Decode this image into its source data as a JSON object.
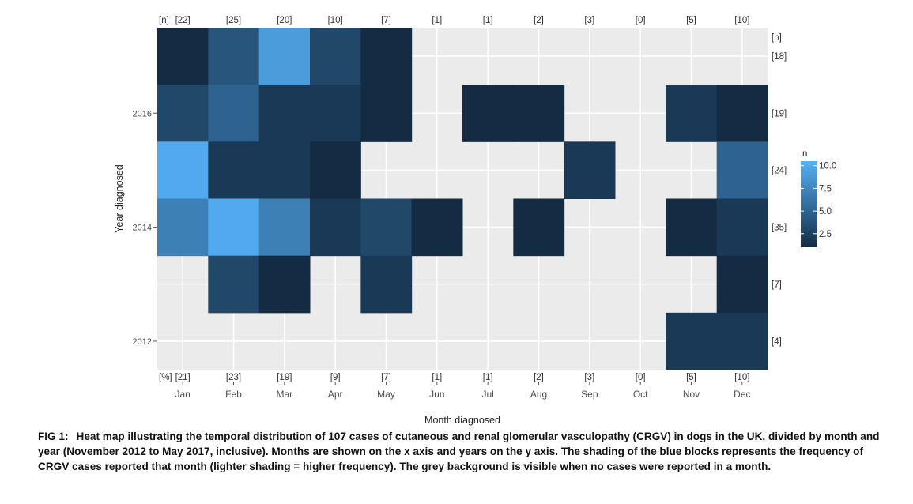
{
  "chart_data": {
    "type": "heatmap",
    "x_categories": [
      "Jan",
      "Feb",
      "Mar",
      "Apr",
      "May",
      "Jun",
      "Jul",
      "Aug",
      "Sep",
      "Oct",
      "Nov",
      "Dec"
    ],
    "y_categories": [
      "2017",
      "2016",
      "2015",
      "2014",
      "2013",
      "2012"
    ],
    "y_tick_labels": [
      "2016",
      "2014",
      "2012"
    ],
    "xlabel": "Month diagnosed",
    "ylabel": "Year diagnosed",
    "top_n_header": "[n]",
    "top_n_values": [
      "[22]",
      "[25]",
      "[20]",
      "[10]",
      "[7]",
      "[1]",
      "[1]",
      "[2]",
      "[3]",
      "[0]",
      "[5]",
      "[10]"
    ],
    "bottom_pct_header": "[%]",
    "bottom_pct_values": [
      "[21]",
      "[23]",
      "[19]",
      "[9]",
      "[7]",
      "[1]",
      "[1]",
      "[2]",
      "[3]",
      "[0]",
      "[5]",
      "[10]"
    ],
    "right_n_header": "[n]",
    "right_n_values": [
      "[18]",
      "[19]",
      "[24]",
      "[35]",
      "[7]",
      "[4]"
    ],
    "legend": {
      "title": "n",
      "min": 1,
      "max": 10.5,
      "ticks": [
        "10.0",
        "7.5",
        "5.0",
        "2.5"
      ],
      "tick_values": [
        10,
        7.5,
        5,
        2.5
      ],
      "position": "right"
    },
    "grid": true,
    "colors": {
      "panel": "#ebebeb",
      "gridline": "#ffffff",
      "low": "#132b43",
      "high": "#56b1f7"
    },
    "cells": [
      {
        "year": "2017",
        "month": "Jan",
        "n": 1
      },
      {
        "year": "2017",
        "month": "Feb",
        "n": 4
      },
      {
        "year": "2017",
        "month": "Mar",
        "n": 9
      },
      {
        "year": "2017",
        "month": "Apr",
        "n": 3
      },
      {
        "year": "2017",
        "month": "May",
        "n": 1
      },
      {
        "year": "2016",
        "month": "Jan",
        "n": 3
      },
      {
        "year": "2016",
        "month": "Feb",
        "n": 5
      },
      {
        "year": "2016",
        "month": "Mar",
        "n": 2
      },
      {
        "year": "2016",
        "month": "Apr",
        "n": 2
      },
      {
        "year": "2016",
        "month": "May",
        "n": 1
      },
      {
        "year": "2016",
        "month": "Jul",
        "n": 1
      },
      {
        "year": "2016",
        "month": "Aug",
        "n": 1
      },
      {
        "year": "2016",
        "month": "Nov",
        "n": 2
      },
      {
        "year": "2016",
        "month": "Dec",
        "n": 1
      },
      {
        "year": "2015",
        "month": "Jan",
        "n": 10
      },
      {
        "year": "2015",
        "month": "Feb",
        "n": 2
      },
      {
        "year": "2015",
        "month": "Mar",
        "n": 2
      },
      {
        "year": "2015",
        "month": "Apr",
        "n": 1
      },
      {
        "year": "2015",
        "month": "Sep",
        "n": 2
      },
      {
        "year": "2015",
        "month": "Dec",
        "n": 5
      },
      {
        "year": "2014",
        "month": "Jan",
        "n": 7
      },
      {
        "year": "2014",
        "month": "Feb",
        "n": 10
      },
      {
        "year": "2014",
        "month": "Mar",
        "n": 7
      },
      {
        "year": "2014",
        "month": "Apr",
        "n": 2
      },
      {
        "year": "2014",
        "month": "May",
        "n": 3
      },
      {
        "year": "2014",
        "month": "Jun",
        "n": 1
      },
      {
        "year": "2014",
        "month": "Aug",
        "n": 1
      },
      {
        "year": "2014",
        "month": "Nov",
        "n": 1
      },
      {
        "year": "2014",
        "month": "Dec",
        "n": 2
      },
      {
        "year": "2013",
        "month": "Feb",
        "n": 3
      },
      {
        "year": "2013",
        "month": "Mar",
        "n": 1
      },
      {
        "year": "2013",
        "month": "May",
        "n": 2
      },
      {
        "year": "2013",
        "month": "Dec",
        "n": 1
      },
      {
        "year": "2012",
        "month": "Nov",
        "n": 2
      },
      {
        "year": "2012",
        "month": "Dec",
        "n": 2
      }
    ]
  },
  "caption": {
    "label": "FIG 1:",
    "text": "Heat map illustrating the temporal distribution of 107 cases of cutaneous and renal glomerular vasculopathy (CRGV) in dogs in the UK, divided by month and year (November 2012 to May 2017, inclusive). Months are shown on the x axis and years on the y axis. The shading of the blue blocks represents the frequency of CRGV cases reported that month (lighter shading = higher frequency). The grey background is visible when no cases were reported in a month."
  }
}
